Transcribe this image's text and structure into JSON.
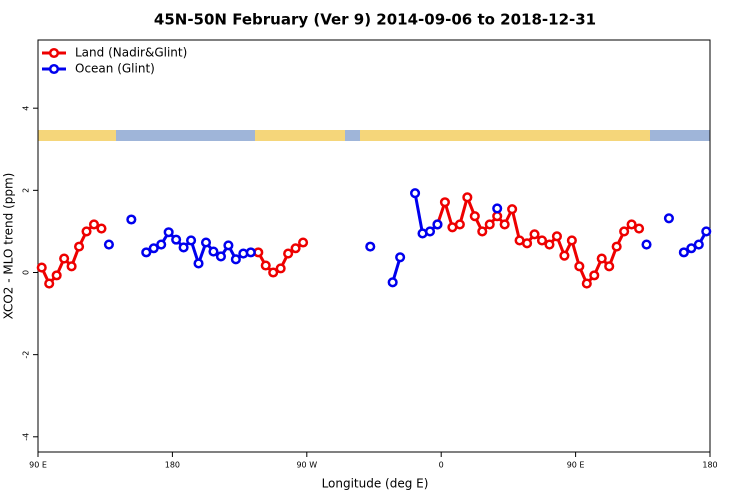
{
  "chart_data": {
    "type": "line",
    "title": "45N-50N February (Ver 9)   2014-09-06 to 2018-12-31",
    "xlabel": "Longitude (deg E)",
    "ylabel": "XCO2 - MLO trend (ppm)",
    "xlim": [
      90,
      540
    ],
    "ylim": [
      -4.37,
      5.66
    ],
    "xticks": [
      {
        "value": 90,
        "label": "90 E"
      },
      {
        "value": 180,
        "label": "180"
      },
      {
        "value": 270,
        "label": "90 W"
      },
      {
        "value": 360,
        "label": "0"
      },
      {
        "value": 450,
        "label": "90 E"
      },
      {
        "value": 540,
        "label": "180"
      }
    ],
    "yticks": [
      -4,
      -2,
      0,
      2,
      4
    ],
    "legend": "top-left",
    "series": [
      {
        "name": "Land (Nadir&Glint)",
        "color": "#ee0000",
        "x": [
          92.5,
          97.5,
          102.5,
          107.5,
          112.5,
          117.5,
          122.5,
          127.5,
          132.5,
          137.5,
          237.5,
          242.5,
          247.5,
          252.5,
          257.5,
          262.5,
          267.5,
          272.5,
          357.5,
          362.5,
          367.5,
          372.5,
          377.5,
          382.5,
          387.5,
          392.5,
          397.5,
          402.5,
          407.5,
          412.5,
          417.5,
          422.5,
          427.5,
          432.5,
          437.5,
          442.5,
          447.5,
          452.5,
          457.5,
          462.5,
          467.5,
          472.5,
          477.5,
          482.5,
          487.5,
          492.5
        ],
        "values": [
          0.12,
          -0.27,
          -0.07,
          0.34,
          0.15,
          0.63,
          1.0,
          1.17,
          1.07,
          null,
          0.49,
          0.17,
          0.0,
          0.1,
          0.46,
          0.59,
          0.73,
          null,
          1.17,
          1.71,
          1.1,
          1.17,
          1.83,
          1.37,
          1.0,
          1.17,
          1.37,
          1.17,
          1.54,
          0.78,
          0.71,
          0.93,
          0.78,
          0.68,
          0.88,
          0.41,
          0.78,
          0.15,
          -0.27,
          -0.07,
          0.34,
          0.15,
          0.63,
          1.0,
          1.17,
          1.07
        ]
      },
      {
        "name": "Ocean (Glint)",
        "color": "#0000ee",
        "x": [
          137.5,
          142.5,
          152.5,
          157.5,
          162.5,
          167.5,
          172.5,
          177.5,
          182.5,
          187.5,
          192.5,
          197.5,
          202.5,
          207.5,
          212.5,
          217.5,
          222.5,
          227.5,
          232.5,
          237.5,
          312.5,
          317.5,
          327.5,
          332.5,
          337.5,
          342.5,
          347.5,
          352.5,
          357.5,
          362.5,
          397.5,
          402.5,
          497.5,
          502.5,
          512.5,
          517.5,
          522.5,
          527.5,
          532.5,
          537.5
        ],
        "values": [
          0.68,
          null,
          1.29,
          null,
          0.49,
          0.59,
          0.68,
          0.98,
          0.8,
          0.61,
          0.78,
          0.22,
          0.73,
          0.51,
          0.39,
          0.66,
          0.32,
          0.46,
          0.49,
          null,
          0.63,
          null,
          -0.24,
          0.37,
          null,
          1.93,
          0.95,
          1.0,
          1.17,
          null,
          1.56,
          null,
          0.68,
          null,
          1.32,
          null,
          0.49,
          0.59,
          0.68,
          1.0
        ]
      }
    ]
  }
}
